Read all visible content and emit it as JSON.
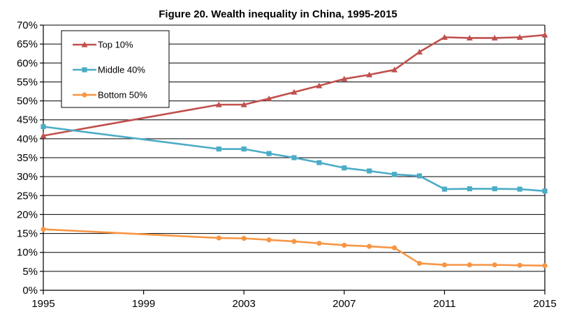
{
  "chart_data": {
    "type": "line",
    "title": "Figure 20. Wealth inequality in China, 1995-2015",
    "xlabel": "",
    "ylabel": "",
    "xlim": [
      1995,
      2015
    ],
    "ylim": [
      0,
      70
    ],
    "x_ticks": [
      1995,
      1999,
      2003,
      2007,
      2011,
      2015
    ],
    "x_tick_labels": [
      "1995",
      "1999",
      "2003",
      "2007",
      "2011",
      "2015"
    ],
    "y_ticks": [
      0,
      5,
      10,
      15,
      20,
      25,
      30,
      35,
      40,
      45,
      50,
      55,
      60,
      65,
      70
    ],
    "y_tick_labels": [
      "0%",
      "5%",
      "10%",
      "15%",
      "20%",
      "25%",
      "30%",
      "35%",
      "40%",
      "45%",
      "50%",
      "55%",
      "60%",
      "65%",
      "70%"
    ],
    "grid": "horizontal",
    "legend_position": "top-left",
    "x": [
      1995,
      2002,
      2003,
      2004,
      2005,
      2006,
      2007,
      2008,
      2009,
      2010,
      2011,
      2012,
      2013,
      2014,
      2015
    ],
    "series": [
      {
        "name": "Top 10%",
        "color": "#c0504d",
        "marker": "triangle",
        "values": [
          40.8,
          49.0,
          49.0,
          50.6,
          52.3,
          54.0,
          55.8,
          56.9,
          58.2,
          62.9,
          66.8,
          66.6,
          66.6,
          66.8,
          67.4
        ]
      },
      {
        "name": "Middle 40%",
        "color": "#4bacc6",
        "marker": "square",
        "values": [
          43.2,
          37.3,
          37.3,
          36.1,
          35.0,
          33.7,
          32.3,
          31.5,
          30.6,
          30.2,
          26.7,
          26.8,
          26.8,
          26.7,
          26.2
        ]
      },
      {
        "name": "Bottom 50%",
        "color": "#f79646",
        "marker": "circle",
        "values": [
          16.1,
          13.8,
          13.7,
          13.3,
          12.9,
          12.4,
          11.9,
          11.6,
          11.2,
          7.1,
          6.7,
          6.7,
          6.7,
          6.6,
          6.5
        ]
      }
    ]
  }
}
